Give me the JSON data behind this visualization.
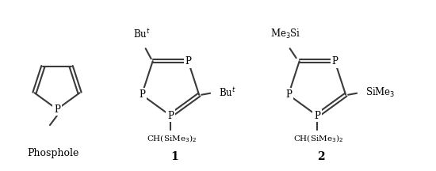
{
  "background_color": "#ffffff",
  "line_color": "#3a3a3a",
  "line_width": 1.5,
  "font_size_label": 9,
  "font_size_atom": 8.5,
  "font_size_sub": 7.5,
  "font_size_number": 10,
  "phosphole_label": "Phosphole",
  "compound1_label": "1",
  "compound2_label": "2"
}
